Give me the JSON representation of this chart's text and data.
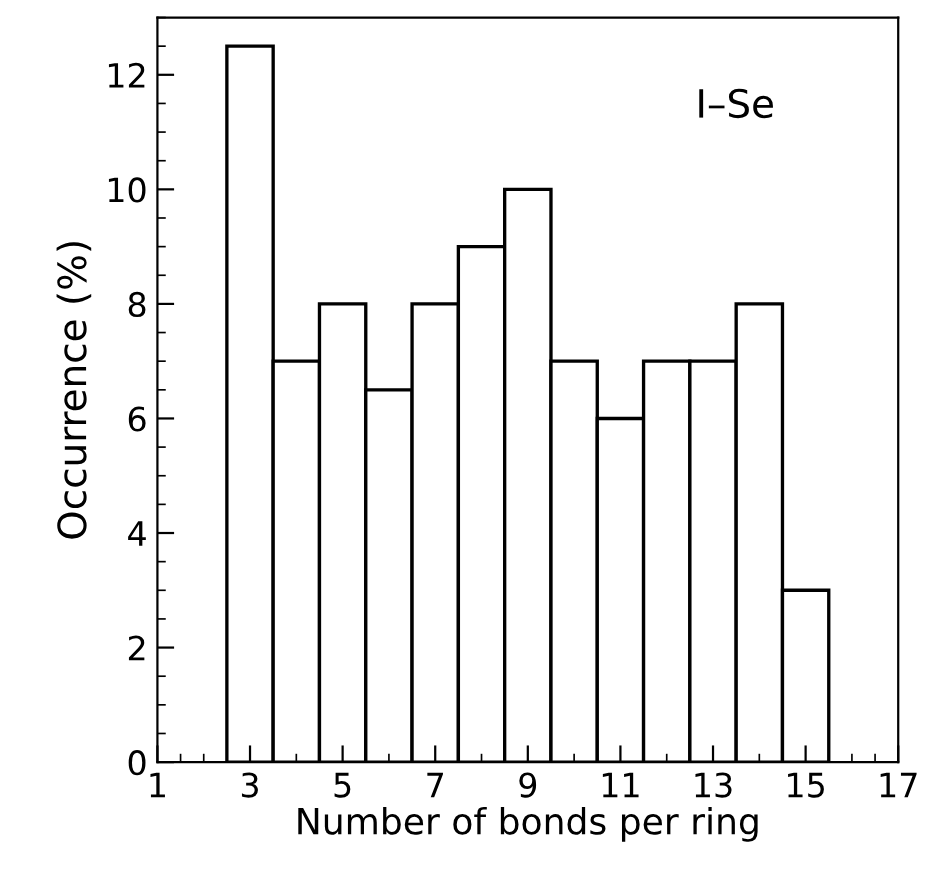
{
  "chart_data": {
    "type": "histogram",
    "xlabel": "Number of bonds per ring",
    "ylabel": "Occurrence (%)",
    "bins": [
      2.5,
      3.5,
      4.5,
      5.5,
      6.5,
      7.5,
      8.5,
      9.5,
      10.5,
      11.5,
      12.5,
      13.5,
      14.5,
      15.5
    ],
    "values": [
      12.5,
      7,
      8,
      6.5,
      8,
      9,
      10,
      7,
      6,
      7,
      7,
      8,
      3
    ],
    "color": "#ffffff",
    "xlim": [
      1,
      17
    ],
    "xticks": [
      1,
      3,
      5,
      7,
      9,
      11,
      13,
      15,
      17
    ],
    "ylim": [
      0,
      13
    ],
    "yticks": [
      0,
      2,
      4,
      6,
      8,
      10,
      12
    ],
    "annotations": [
      "I–Se"
    ],
    "grid": false,
    "legend": false
  }
}
